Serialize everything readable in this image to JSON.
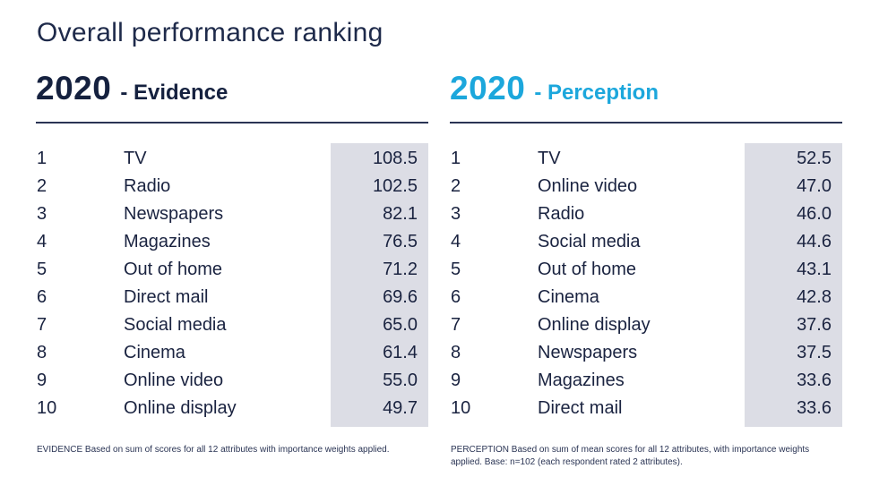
{
  "page": {
    "title": "Overall performance ranking"
  },
  "evidence": {
    "year": "2020",
    "label": "- Evidence",
    "colors": {
      "heading": "#15213f",
      "shade": "#dcdde5"
    },
    "rows": [
      {
        "rank": "1",
        "name": "TV",
        "score": "108.5"
      },
      {
        "rank": "2",
        "name": "Radio",
        "score": "102.5"
      },
      {
        "rank": "3",
        "name": "Newspapers",
        "score": "82.1"
      },
      {
        "rank": "4",
        "name": "Magazines",
        "score": "76.5"
      },
      {
        "rank": "5",
        "name": "Out of home",
        "score": "71.2"
      },
      {
        "rank": "6",
        "name": "Direct mail",
        "score": "69.6"
      },
      {
        "rank": "7",
        "name": "Social media",
        "score": "65.0"
      },
      {
        "rank": "8",
        "name": "Cinema",
        "score": "61.4"
      },
      {
        "rank": "9",
        "name": "Online video",
        "score": "55.0"
      },
      {
        "rank": "10",
        "name": "Online display",
        "score": "49.7"
      }
    ],
    "footnote": "EVIDENCE Based on sum of scores for all 12 attributes with importance weights applied."
  },
  "perception": {
    "year": "2020",
    "label": "- Perception",
    "colors": {
      "heading": "#1ca7dc",
      "shade": "#dcdde5"
    },
    "rows": [
      {
        "rank": "1",
        "name": "TV",
        "score": "52.5"
      },
      {
        "rank": "2",
        "name": "Online video",
        "score": "47.0"
      },
      {
        "rank": "3",
        "name": "Radio",
        "score": "46.0"
      },
      {
        "rank": "4",
        "name": "Social media",
        "score": "44.6"
      },
      {
        "rank": "5",
        "name": "Out of home",
        "score": "43.1"
      },
      {
        "rank": "6",
        "name": "Cinema",
        "score": "42.8"
      },
      {
        "rank": "7",
        "name": "Online display",
        "score": "37.6"
      },
      {
        "rank": "8",
        "name": "Newspapers",
        "score": "37.5"
      },
      {
        "rank": "9",
        "name": "Magazines",
        "score": "33.6"
      },
      {
        "rank": "10",
        "name": "Direct mail",
        "score": "33.6"
      }
    ],
    "footnote": "PERCEPTION Based on sum of mean scores for all 12 attributes, with importance weights applied. Base: n=102 (each respondent rated 2 attributes)."
  }
}
